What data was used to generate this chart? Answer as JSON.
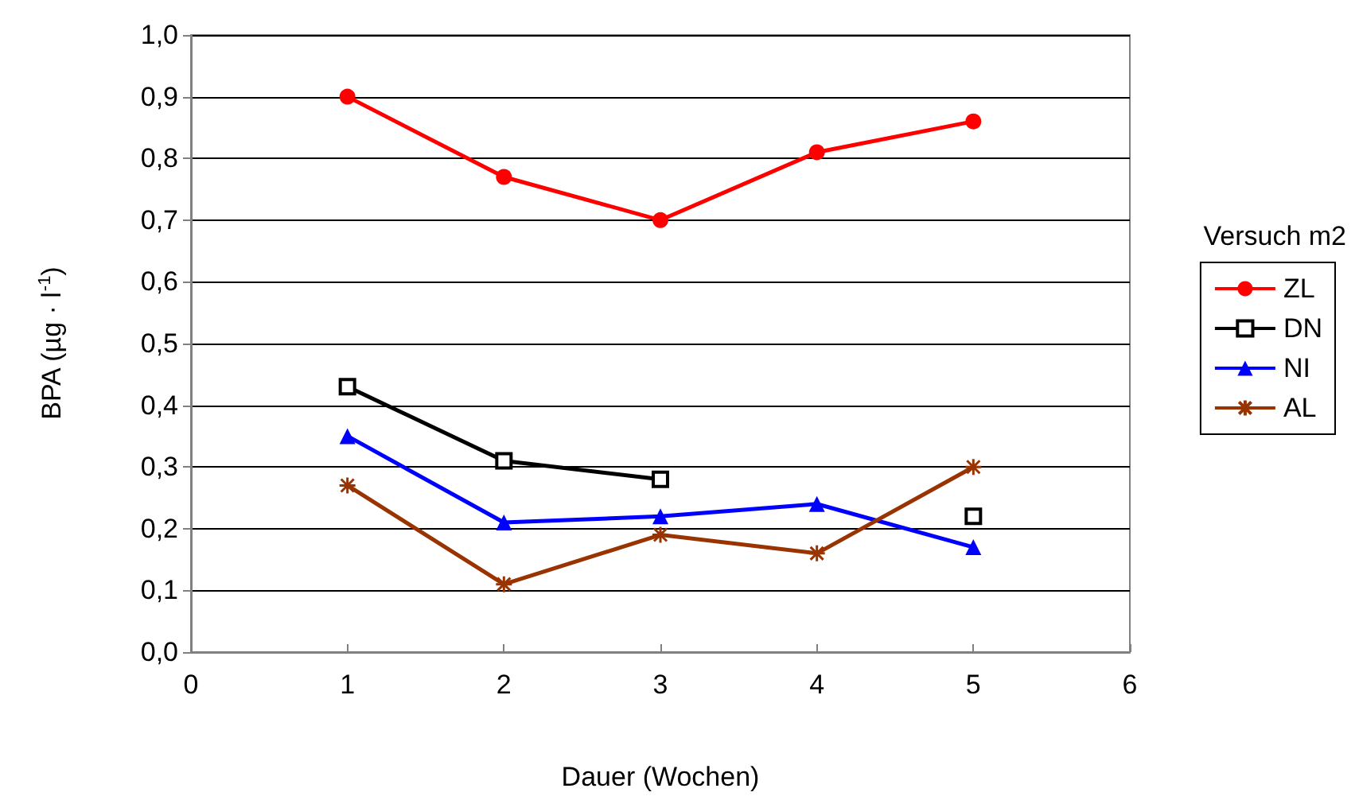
{
  "chart_data": {
    "type": "line",
    "xlabel": "Dauer (Wochen)",
    "ylabel": "BPA (µg · l$^{-1}$)",
    "legend_title": "Versuch m2",
    "legend": "right",
    "grid": "y",
    "line_style": "solid",
    "x": [
      1,
      2,
      3,
      4,
      5
    ],
    "series": [
      {
        "name": "ZL",
        "color": "#ff0000",
        "marker": "circle",
        "values": [
          0.9,
          0.77,
          0.7,
          0.81,
          0.86
        ]
      },
      {
        "name": "DN",
        "color": "#000000",
        "marker": "square",
        "values": [
          0.43,
          0.31,
          0.28,
          null,
          0.22
        ]
      },
      {
        "name": "NI",
        "color": "#0000ff",
        "marker": "triangle",
        "values": [
          0.35,
          0.21,
          0.22,
          0.24,
          0.17
        ]
      },
      {
        "name": "AL",
        "color": "#993300",
        "marker": "cross",
        "values": [
          0.27,
          0.11,
          0.19,
          0.16,
          0.3
        ]
      }
    ],
    "xlim": [
      0,
      6
    ],
    "xticks": [
      0,
      1,
      2,
      3,
      4,
      5,
      6
    ],
    "ylim": [
      0,
      1
    ],
    "yticks": [
      {
        "value": 0,
        "label": "0,0"
      },
      {
        "value": 0.1,
        "label": "0,1"
      },
      {
        "value": 0.2,
        "label": "0,2"
      },
      {
        "value": 0.3,
        "label": "0,3"
      },
      {
        "value": 0.4,
        "label": "0,4"
      },
      {
        "value": 0.5,
        "label": "0,5"
      },
      {
        "value": 0.6,
        "label": "0,6"
      },
      {
        "value": 0.7,
        "label": "0,7"
      },
      {
        "value": 0.8,
        "label": "0,8"
      },
      {
        "value": 0.9,
        "label": "0,9"
      },
      {
        "value": 1,
        "label": "1,0"
      }
    ]
  }
}
